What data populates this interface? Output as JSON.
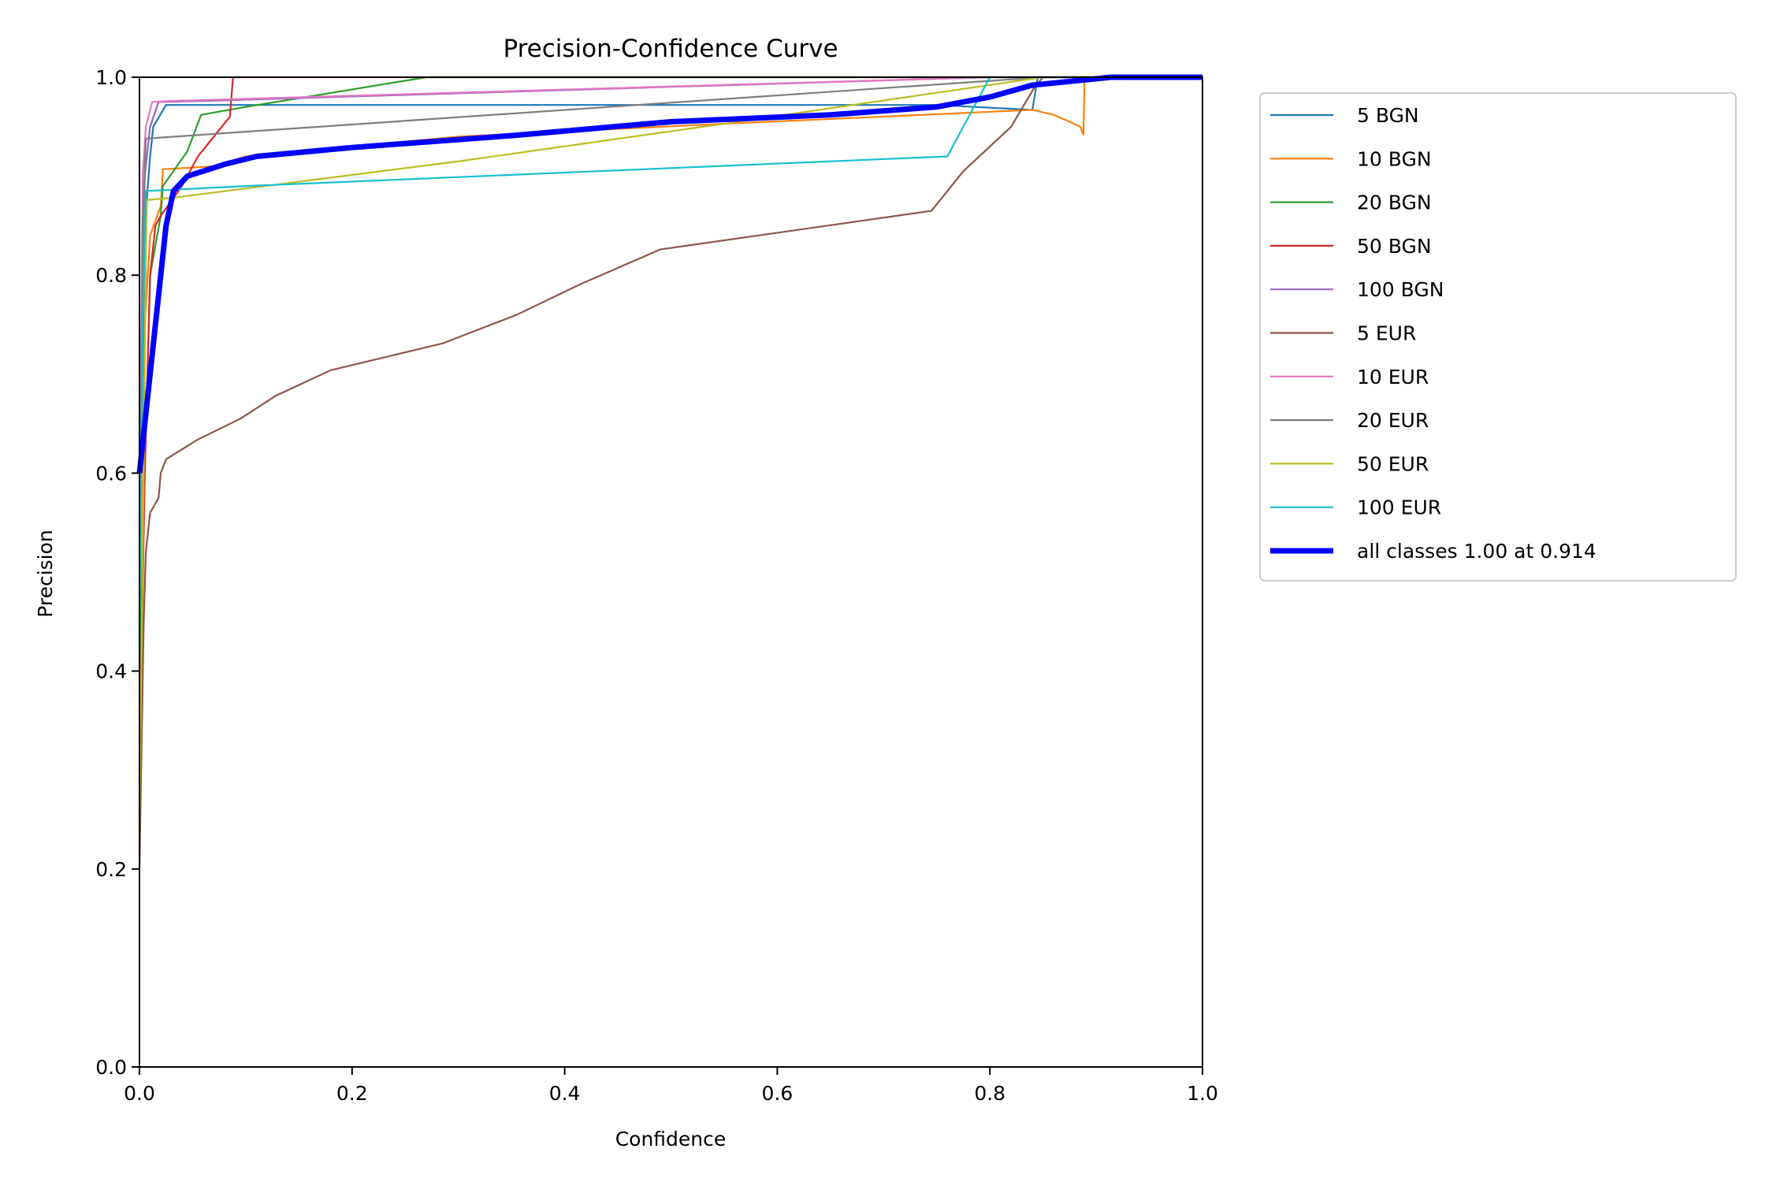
{
  "chart_data": {
    "type": "line",
    "title": "Precision-Confidence Curve",
    "xlabel": "Confidence",
    "ylabel": "Precision",
    "xlim": [
      0,
      1
    ],
    "ylim": [
      0,
      1
    ],
    "xticks": [
      "0.0",
      "0.2",
      "0.4",
      "0.6",
      "0.8",
      "1.0"
    ],
    "yticks": [
      "0.0",
      "0.2",
      "0.4",
      "0.6",
      "0.8",
      "1.0"
    ],
    "grid": false,
    "legend_position": "outside-right-top",
    "series": [
      {
        "name": "5 BGN",
        "color": "#1f77b4",
        "points": [
          [
            0,
            0.5
          ],
          [
            0.005,
            0.85
          ],
          [
            0.01,
            0.92
          ],
          [
            0.013,
            0.95
          ],
          [
            0.025,
            0.972
          ],
          [
            0.75,
            0.972
          ],
          [
            0.84,
            0.967
          ],
          [
            0.845,
            1
          ],
          [
            1,
            1
          ]
        ]
      },
      {
        "name": "10 BGN",
        "color": "#ff7f0e",
        "points": [
          [
            0,
            0.3
          ],
          [
            0.005,
            0.75
          ],
          [
            0.01,
            0.84
          ],
          [
            0.02,
            0.87
          ],
          [
            0.022,
            0.907
          ],
          [
            0.07,
            0.91
          ],
          [
            0.1,
            0.92
          ],
          [
            0.3,
            0.94
          ],
          [
            0.55,
            0.953
          ],
          [
            0.84,
            0.967
          ],
          [
            0.86,
            0.962
          ],
          [
            0.875,
            0.955
          ],
          [
            0.885,
            0.95
          ],
          [
            0.888,
            0.942
          ],
          [
            0.889,
            1
          ],
          [
            1,
            1
          ]
        ]
      },
      {
        "name": "20 BGN",
        "color": "#2ca02c",
        "points": [
          [
            0,
            0.4
          ],
          [
            0.01,
            0.8
          ],
          [
            0.02,
            0.86
          ],
          [
            0.022,
            0.89
          ],
          [
            0.045,
            0.925
          ],
          [
            0.058,
            0.962
          ],
          [
            0.1,
            0.97
          ],
          [
            0.27,
            1
          ],
          [
            1,
            1
          ]
        ]
      },
      {
        "name": "50 BGN",
        "color": "#d62728",
        "points": [
          [
            0,
            0.3
          ],
          [
            0.005,
            0.6
          ],
          [
            0.01,
            0.8
          ],
          [
            0.015,
            0.85
          ],
          [
            0.02,
            0.86
          ],
          [
            0.04,
            0.89
          ],
          [
            0.055,
            0.92
          ],
          [
            0.085,
            0.96
          ],
          [
            0.088,
            1
          ],
          [
            1,
            1
          ]
        ]
      },
      {
        "name": "100 BGN",
        "color": "#9467bd",
        "points": [
          [
            0,
            0.6
          ],
          [
            0.005,
            0.9
          ],
          [
            0.01,
            0.95
          ],
          [
            0.018,
            0.975
          ],
          [
            0.06,
            0.976
          ],
          [
            0.8,
            1
          ],
          [
            1,
            1
          ]
        ]
      },
      {
        "name": "5 EUR",
        "color": "#8c564b",
        "points": [
          [
            0,
            0.2
          ],
          [
            0.004,
            0.45
          ],
          [
            0.006,
            0.52
          ],
          [
            0.01,
            0.56
          ],
          [
            0.018,
            0.575
          ],
          [
            0.02,
            0.6
          ],
          [
            0.025,
            0.614
          ],
          [
            0.055,
            0.634
          ],
          [
            0.095,
            0.655
          ],
          [
            0.128,
            0.678
          ],
          [
            0.18,
            0.704
          ],
          [
            0.285,
            0.731
          ],
          [
            0.355,
            0.76
          ],
          [
            0.415,
            0.791
          ],
          [
            0.49,
            0.826
          ],
          [
            0.745,
            0.865
          ],
          [
            0.775,
            0.905
          ],
          [
            0.82,
            0.95
          ],
          [
            0.842,
            0.99
          ],
          [
            0.85,
            1
          ],
          [
            1,
            1
          ]
        ]
      },
      {
        "name": "10 EUR",
        "color": "#e377c2",
        "points": [
          [
            0,
            0.55
          ],
          [
            0.003,
            0.9
          ],
          [
            0.006,
            0.95
          ],
          [
            0.012,
            0.975
          ],
          [
            0.03,
            0.976
          ],
          [
            0.8,
            1
          ],
          [
            1,
            1
          ]
        ]
      },
      {
        "name": "20 EUR",
        "color": "#7f7f7f",
        "points": [
          [
            0,
            0.45
          ],
          [
            0.003,
            0.85
          ],
          [
            0.006,
            0.938
          ],
          [
            0.85,
            1
          ],
          [
            1,
            1
          ]
        ]
      },
      {
        "name": "50 EUR",
        "color": "#bcbd22",
        "points": [
          [
            0,
            0.25
          ],
          [
            0.004,
            0.6
          ],
          [
            0.006,
            0.82
          ],
          [
            0.007,
            0.876
          ],
          [
            0.03,
            0.878
          ],
          [
            0.3,
            0.915
          ],
          [
            0.55,
            0.953
          ],
          [
            0.85,
            1
          ],
          [
            1,
            1
          ]
        ]
      },
      {
        "name": "100 EUR",
        "color": "#17becf",
        "points": [
          [
            0,
            0.45
          ],
          [
            0.003,
            0.75
          ],
          [
            0.006,
            0.885
          ],
          [
            0.1,
            0.89
          ],
          [
            0.76,
            0.92
          ],
          [
            0.8,
            1
          ],
          [
            1,
            1
          ]
        ]
      },
      {
        "name": "all classes 1.00 at 0.914",
        "color": "#0000ff",
        "bold": true,
        "points": [
          [
            0,
            0.6
          ],
          [
            0.01,
            0.7
          ],
          [
            0.025,
            0.85
          ],
          [
            0.032,
            0.885
          ],
          [
            0.045,
            0.9
          ],
          [
            0.08,
            0.912
          ],
          [
            0.11,
            0.92
          ],
          [
            0.2,
            0.929
          ],
          [
            0.35,
            0.941
          ],
          [
            0.5,
            0.955
          ],
          [
            0.65,
            0.962
          ],
          [
            0.75,
            0.97
          ],
          [
            0.8,
            0.98
          ],
          [
            0.84,
            0.992
          ],
          [
            0.914,
            1
          ],
          [
            1,
            1
          ]
        ]
      }
    ]
  }
}
